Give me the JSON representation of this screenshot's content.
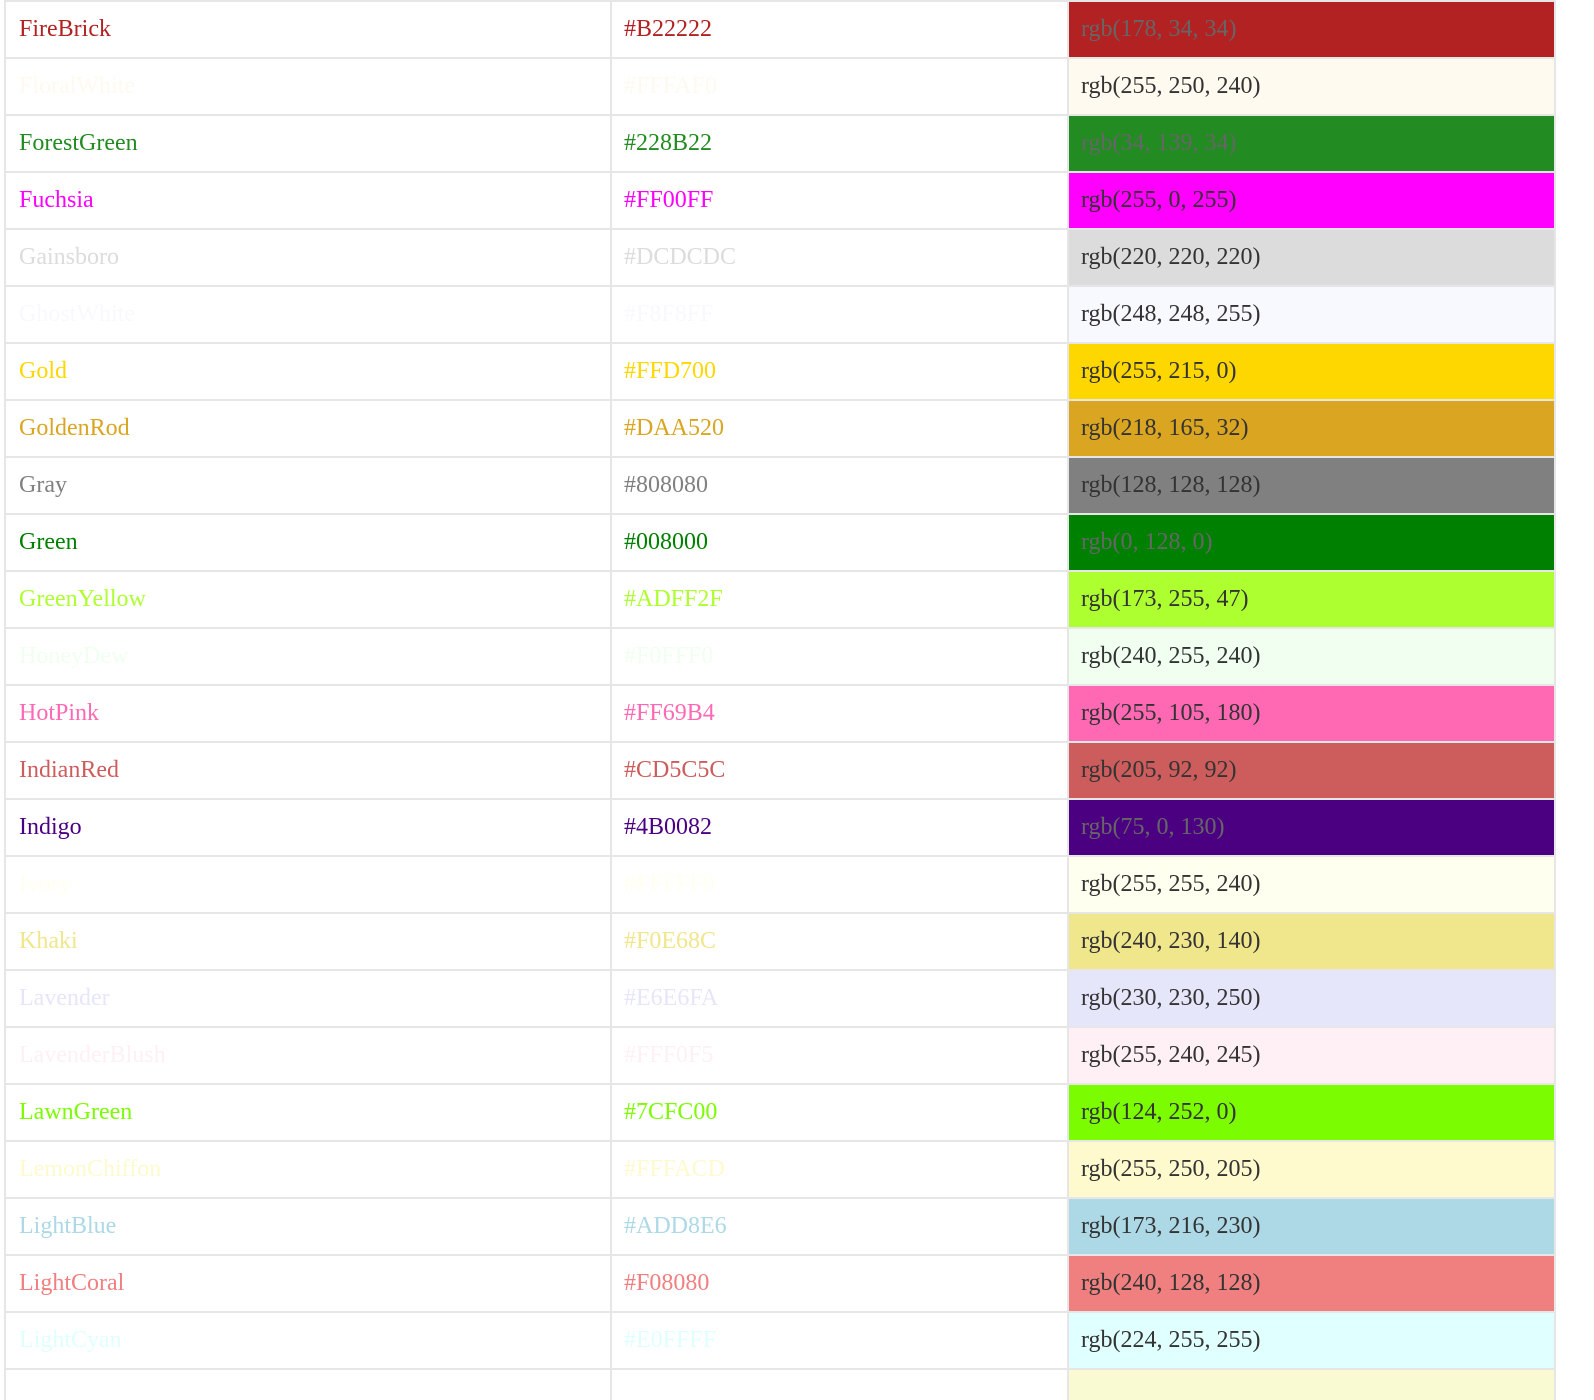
{
  "colors": [
    {
      "name": "FireBrick",
      "hex": "#B22222",
      "rgb": "rgb(178, 34, 34)",
      "swatch": "#B22222",
      "dark": true
    },
    {
      "name": "FloralWhite",
      "hex": "#FFFAF0",
      "rgb": "rgb(255, 250, 240)",
      "swatch": "#FFFAF0",
      "dark": false
    },
    {
      "name": "ForestGreen",
      "hex": "#228B22",
      "rgb": "rgb(34, 139, 34)",
      "swatch": "#228B22",
      "dark": true
    },
    {
      "name": "Fuchsia",
      "hex": "#FF00FF",
      "rgb": "rgb(255, 0, 255)",
      "swatch": "#FF00FF",
      "dark": false
    },
    {
      "name": "Gainsboro",
      "hex": "#DCDCDC",
      "rgb": "rgb(220, 220, 220)",
      "swatch": "#DCDCDC",
      "dark": false
    },
    {
      "name": "GhostWhite",
      "hex": "#F8F8FF",
      "rgb": "rgb(248, 248, 255)",
      "swatch": "#F8F8FF",
      "dark": false
    },
    {
      "name": "Gold",
      "hex": "#FFD700",
      "rgb": "rgb(255, 215, 0)",
      "swatch": "#FFD700",
      "dark": false
    },
    {
      "name": "GoldenRod",
      "hex": "#DAA520",
      "rgb": "rgb(218, 165, 32)",
      "swatch": "#DAA520",
      "dark": false
    },
    {
      "name": "Gray",
      "hex": "#808080",
      "rgb": "rgb(128, 128, 128)",
      "swatch": "#808080",
      "dark": false
    },
    {
      "name": "Green",
      "hex": "#008000",
      "rgb": "rgb(0, 128, 0)",
      "swatch": "#008000",
      "dark": true
    },
    {
      "name": "GreenYellow",
      "hex": "#ADFF2F",
      "rgb": "rgb(173, 255, 47)",
      "swatch": "#ADFF2F",
      "dark": false
    },
    {
      "name": "HoneyDew",
      "hex": "#F0FFF0",
      "rgb": "rgb(240, 255, 240)",
      "swatch": "#F0FFF0",
      "dark": false
    },
    {
      "name": "HotPink",
      "hex": "#FF69B4",
      "rgb": "rgb(255, 105, 180)",
      "swatch": "#FF69B4",
      "dark": false
    },
    {
      "name": "IndianRed",
      "hex": "#CD5C5C",
      "rgb": "rgb(205, 92, 92)",
      "swatch": "#CD5C5C",
      "dark": false
    },
    {
      "name": "Indigo",
      "hex": "#4B0082",
      "rgb": "rgb(75, 0, 130)",
      "swatch": "#4B0082",
      "dark": true
    },
    {
      "name": "Ivory",
      "hex": "#FFFFF0",
      "rgb": "rgb(255, 255, 240)",
      "swatch": "#FFFFF0",
      "dark": false
    },
    {
      "name": "Khaki",
      "hex": "#F0E68C",
      "rgb": "rgb(240, 230, 140)",
      "swatch": "#F0E68C",
      "dark": false
    },
    {
      "name": "Lavender",
      "hex": "#E6E6FA",
      "rgb": "rgb(230, 230, 250)",
      "swatch": "#E6E6FA",
      "dark": false
    },
    {
      "name": "LavenderBlush",
      "hex": "#FFF0F5",
      "rgb": "rgb(255, 240, 245)",
      "swatch": "#FFF0F5",
      "dark": false
    },
    {
      "name": "LawnGreen",
      "hex": "#7CFC00",
      "rgb": "rgb(124, 252, 0)",
      "swatch": "#7CFC00",
      "dark": false
    },
    {
      "name": "LemonChiffon",
      "hex": "#FFFACD",
      "rgb": "rgb(255, 250, 205)",
      "swatch": "#FFFACD",
      "dark": false
    },
    {
      "name": "LightBlue",
      "hex": "#ADD8E6",
      "rgb": "rgb(173, 216, 230)",
      "swatch": "#ADD8E6",
      "dark": false
    },
    {
      "name": "LightCoral",
      "hex": "#F08080",
      "rgb": "rgb(240, 128, 128)",
      "swatch": "#F08080",
      "dark": false
    },
    {
      "name": "LightCyan",
      "hex": "#E0FFFF",
      "rgb": "rgb(224, 255, 255)",
      "swatch": "#E0FFFF",
      "dark": false
    },
    {
      "name": "",
      "hex": "",
      "rgb": "",
      "swatch": "#FAFAD2",
      "dark": false,
      "partial": true
    }
  ]
}
